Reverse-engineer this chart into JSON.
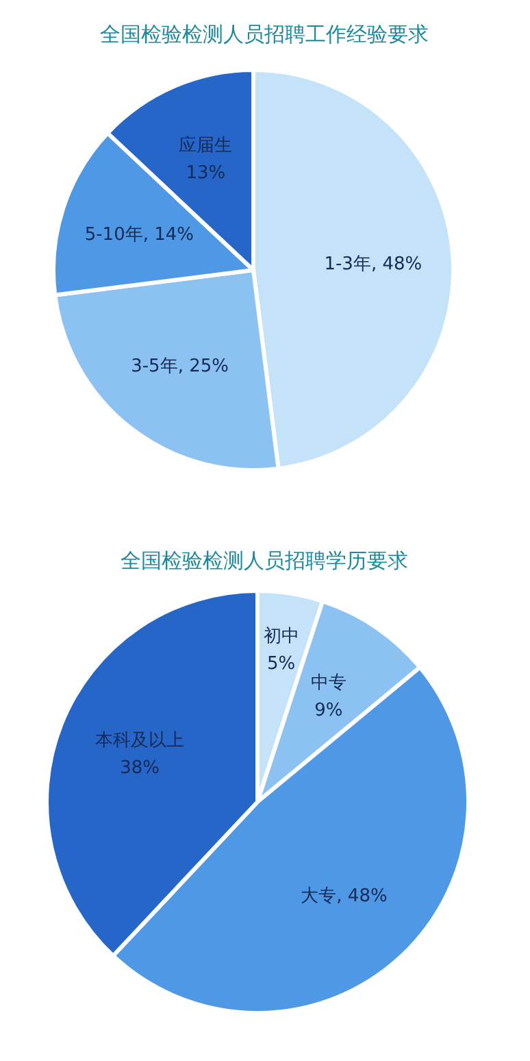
{
  "chart_data": [
    {
      "type": "pie",
      "title": "全国检验检测人员招聘工作经验要求",
      "categories": [
        "1-3年",
        "3-5年",
        "5-10年",
        "应届生"
      ],
      "values": [
        48,
        25,
        14,
        13
      ],
      "value_labels": [
        "48%",
        "25%",
        "14%",
        "13%"
      ],
      "colors": [
        "#c4e2f8",
        "#8cc2f2",
        "#4f98e6",
        "#2566c8"
      ]
    },
    {
      "type": "pie",
      "title": "全国检验检测人员招聘学历要求",
      "categories": [
        "初中",
        "中专",
        "大专",
        "本科及以上"
      ],
      "values": [
        5,
        9,
        48,
        38
      ],
      "value_labels": [
        "5%",
        "9%",
        "48%",
        "38%"
      ],
      "colors": [
        "#c4e2f8",
        "#8cc2f2",
        "#4f98e6",
        "#2566c8"
      ]
    }
  ]
}
